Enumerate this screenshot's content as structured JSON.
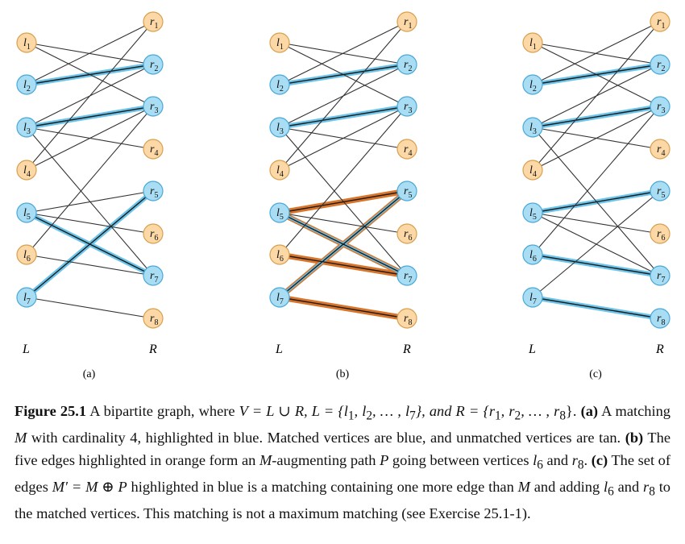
{
  "figure": {
    "left_label": "L",
    "right_label": "R",
    "left_vertices": [
      "l1",
      "l2",
      "l3",
      "l4",
      "l5",
      "l6",
      "l7"
    ],
    "right_vertices": [
      "r1",
      "r2",
      "r3",
      "r4",
      "r5",
      "r6",
      "r7",
      "r8"
    ],
    "colors": {
      "matched": "#a8ddf3",
      "matched_stroke": "#4aa8d8",
      "unmatched": "#fbd8a6",
      "unmatched_stroke": "#d8a050",
      "edge": "#333333",
      "blue_edge": "#6cc4ea",
      "orange_edge": "#d9752a"
    },
    "edges": [
      [
        1,
        2
      ],
      [
        1,
        3
      ],
      [
        2,
        1
      ],
      [
        2,
        2
      ],
      [
        3,
        2
      ],
      [
        3,
        3
      ],
      [
        3,
        4
      ],
      [
        3,
        7
      ],
      [
        4,
        1
      ],
      [
        4,
        3
      ],
      [
        5,
        5
      ],
      [
        5,
        6
      ],
      [
        5,
        7
      ],
      [
        6,
        3
      ],
      [
        6,
        7
      ],
      [
        7,
        5
      ],
      [
        7,
        8
      ]
    ],
    "panels": [
      {
        "label": "(a)",
        "blue_edges": [
          [
            2,
            2
          ],
          [
            3,
            3
          ],
          [
            5,
            7
          ],
          [
            7,
            5
          ]
        ],
        "orange_edges": [],
        "matched_left": [
          2,
          3,
          5,
          7
        ],
        "matched_right": [
          2,
          3,
          5,
          7
        ]
      },
      {
        "label": "(b)",
        "blue_edges": [
          [
            2,
            2
          ],
          [
            3,
            3
          ],
          [
            5,
            7
          ],
          [
            7,
            5
          ]
        ],
        "orange_edges": [
          [
            5,
            5
          ],
          [
            5,
            7
          ],
          [
            6,
            7
          ],
          [
            7,
            5
          ],
          [
            7,
            8
          ]
        ],
        "matched_left": [
          2,
          3,
          5,
          7
        ],
        "matched_right": [
          2,
          3,
          5,
          7
        ]
      },
      {
        "label": "(c)",
        "blue_edges": [
          [
            2,
            2
          ],
          [
            3,
            3
          ],
          [
            5,
            5
          ],
          [
            6,
            7
          ],
          [
            7,
            8
          ]
        ],
        "orange_edges": [],
        "matched_left": [
          2,
          3,
          5,
          6,
          7
        ],
        "matched_right": [
          2,
          3,
          5,
          7,
          8
        ]
      }
    ]
  },
  "caption": {
    "fig_num": "Figure 25.1",
    "p1": " A bipartite graph, where ",
    "set_def": "V = L ∪ R, L = {l",
    "set_def2": ", l",
    "set_def3": ", … , l",
    "set_def4": "}, and R = {r",
    "set_def5": ", r",
    "set_def6": ", … , r",
    "set_def7": "}.",
    "sub1": "1",
    "sub2": "2",
    "sub7": "7",
    "sub8": "8",
    "a_label": "(a)",
    "a_text1": " A matching ",
    "a_M": "M",
    "a_text2": " with cardinality 4, highlighted in blue. Matched vertices are blue, and unmatched vertices are tan. ",
    "b_label": "(b)",
    "b_text1": " The five edges highlighted in orange form an ",
    "b_M": "M",
    "b_text2": "-augmenting path ",
    "b_P": "P",
    "b_text3": " going between vertices ",
    "b_l": "l",
    "sub6": "6",
    "b_and": " and ",
    "b_r": "r",
    "b_end": ". ",
    "c_label": "(c)",
    "c_text1": " The set of edges ",
    "c_expr": "M′ = M ⊕ P",
    "c_text2": " highlighted in blue is a matching containing one more edge than ",
    "c_M": "M",
    "c_text3": " and adding ",
    "c_l": "l",
    "c_and": " and ",
    "c_r": "r",
    "c_text4": " to the matched vertices. This matching is not a maximum matching (see Exercise 25.1-1)."
  }
}
